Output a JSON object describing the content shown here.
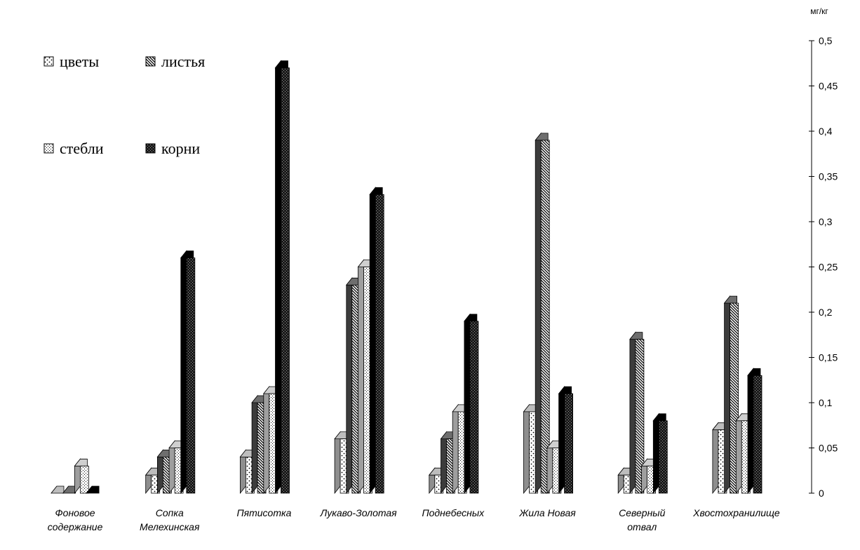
{
  "chart_data": {
    "type": "bar",
    "unit": "мг/кг",
    "categories": [
      [
        "Фоновое",
        "содержание"
      ],
      [
        "Сопка",
        "Мелехинская"
      ],
      [
        "Пятисотка"
      ],
      [
        "Лукаво-Золотая"
      ],
      [
        "Поднебесных"
      ],
      [
        "Жила  Новая"
      ],
      [
        "Северный",
        "отвал"
      ],
      [
        "Хвостохранилище"
      ]
    ],
    "series": [
      {
        "name": "цветы",
        "pattern": "dots",
        "values": [
          0.0,
          0.02,
          0.04,
          0.06,
          0.02,
          0.09,
          0.02,
          0.07
        ]
      },
      {
        "name": "листья",
        "pattern": "diag",
        "values": [
          0.0,
          0.04,
          0.1,
          0.23,
          0.06,
          0.39,
          0.17,
          0.21
        ]
      },
      {
        "name": "стебли",
        "pattern": "stipple",
        "values": [
          0.03,
          0.05,
          0.11,
          0.25,
          0.09,
          0.05,
          0.03,
          0.08
        ]
      },
      {
        "name": "корни",
        "pattern": "dark",
        "values": [
          0.0,
          0.26,
          0.47,
          0.33,
          0.19,
          0.11,
          0.08,
          0.13
        ]
      }
    ],
    "y_axis": {
      "min": 0,
      "max": 0.5,
      "position": "right",
      "ticks": [
        0,
        0.05,
        0.1,
        0.15,
        0.2,
        0.25,
        0.3,
        0.35,
        0.4,
        0.45,
        0.5
      ],
      "tick_labels": [
        "0",
        "0,05",
        "0,1",
        "0,15",
        "0,2",
        "0,25",
        "0,3",
        "0,35",
        "0,4",
        "0,45",
        "0,5"
      ]
    },
    "grid": false,
    "legend_position": "top-left"
  }
}
